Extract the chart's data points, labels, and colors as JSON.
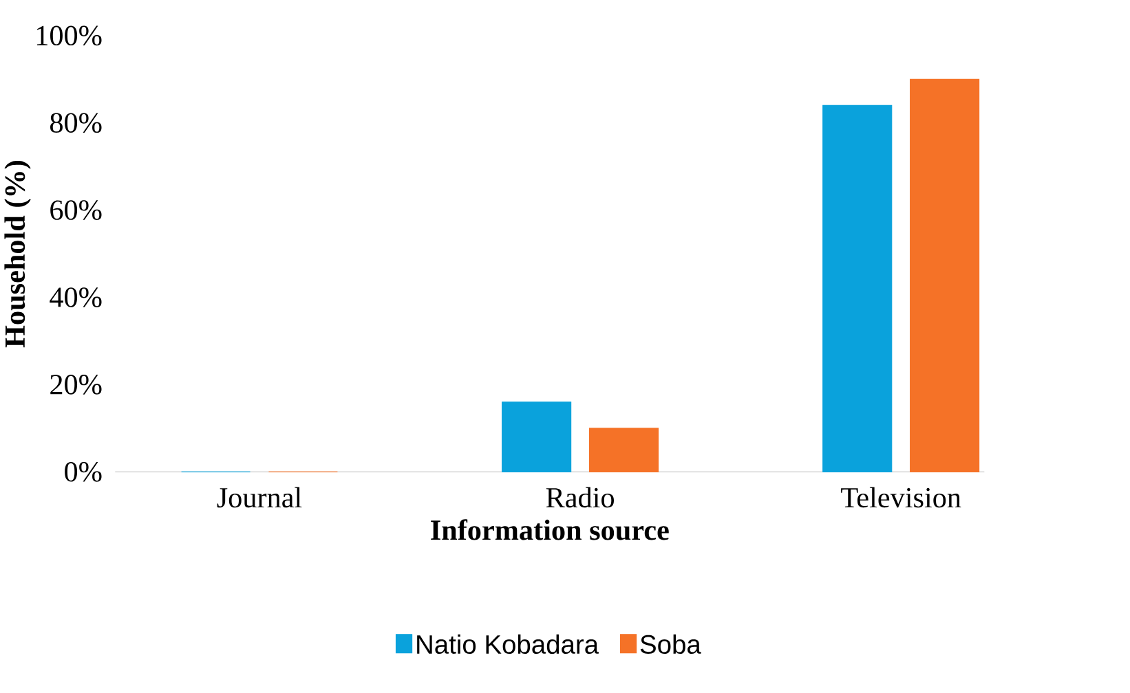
{
  "chart_data": {
    "type": "bar",
    "xlabel": "Information source",
    "ylabel": "Household (%)",
    "categories": [
      "Journal",
      "Radio",
      "Television"
    ],
    "series": [
      {
        "name": "Natio Kobadara",
        "color": "#0aa2dc",
        "values": [
          0,
          16,
          84
        ]
      },
      {
        "name": "Soba",
        "color": "#f57227",
        "values": [
          0,
          10,
          90
        ]
      }
    ],
    "ylim": [
      0,
      100
    ],
    "yticks": [
      {
        "value": 0,
        "label": "0%"
      },
      {
        "value": 20,
        "label": "20%"
      },
      {
        "value": 40,
        "label": "40%"
      },
      {
        "value": 60,
        "label": "60%"
      },
      {
        "value": 80,
        "label": "80%"
      },
      {
        "value": 100,
        "label": "100%"
      }
    ],
    "grid": false,
    "legend": "bottom"
  }
}
